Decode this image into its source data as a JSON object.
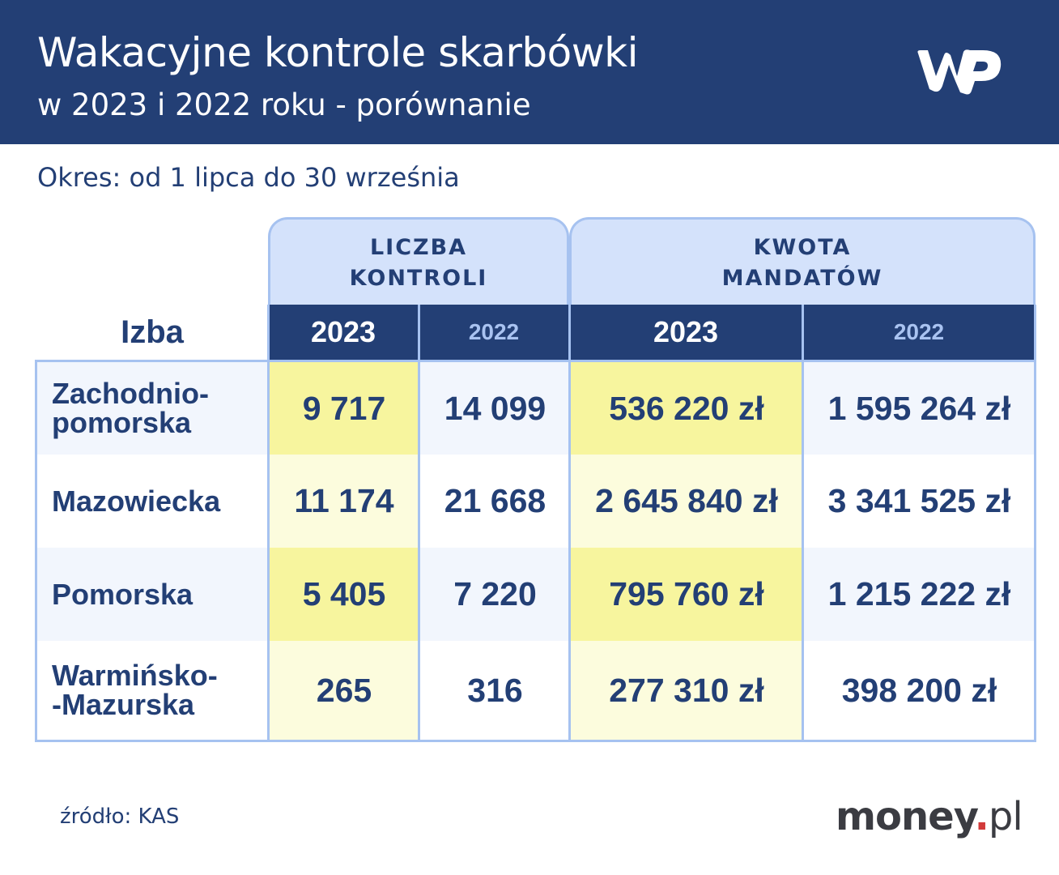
{
  "header": {
    "title": "Wakacyjne kontrole skarbówki",
    "subtitle": "w 2023 i 2022 roku - porównanie",
    "logo": "WP"
  },
  "period": "Okres: od 1 lipca do 30 września",
  "colors": {
    "header_bg": "#233f75",
    "group_header_bg": "#d4e2fb",
    "highlight_2023": "#f7f59e",
    "row_alt": "#f2f6fd",
    "border": "#a6c2f0"
  },
  "chart_data": {
    "type": "table",
    "row_header_label": "Izba",
    "groups": [
      {
        "label": "LICZBA KONTROLI",
        "years": [
          "2023",
          "2022"
        ]
      },
      {
        "label": "KWOTA MANDATÓW",
        "years": [
          "2023",
          "2022"
        ]
      }
    ],
    "rows": [
      {
        "izba": "Zachodnio-pomorska",
        "cells": [
          "9 717",
          "14 099",
          "536 220 zł",
          "1 595 264 zł"
        ],
        "kontrole_2023": 9717,
        "kontrole_2022": 14099,
        "mandaty_2023": 536220,
        "mandaty_2022": 1595264
      },
      {
        "izba": "Mazowiecka",
        "cells": [
          "11 174",
          "21 668",
          "2 645 840 zł",
          "3 341 525 zł"
        ],
        "kontrole_2023": 11174,
        "kontrole_2022": 21668,
        "mandaty_2023": 2645840,
        "mandaty_2022": 3341525
      },
      {
        "izba": "Pomorska",
        "cells": [
          "5 405",
          "7 220",
          "795 760 zł",
          "1 215 222 zł"
        ],
        "kontrole_2023": 5405,
        "kontrole_2022": 7220,
        "mandaty_2023": 795760,
        "mandaty_2022": 1215222
      },
      {
        "izba": "Warmińsko--Mazurska",
        "cells": [
          "265",
          "316",
          "277 310 zł",
          "398 200 zł"
        ],
        "kontrole_2023": 265,
        "kontrole_2022": 316,
        "mandaty_2023": 277310,
        "mandaty_2022": 398200
      }
    ]
  },
  "footer": {
    "source": "źródło: KAS",
    "brand_name": "money",
    "brand_dot": ".",
    "brand_tld": "pl"
  }
}
